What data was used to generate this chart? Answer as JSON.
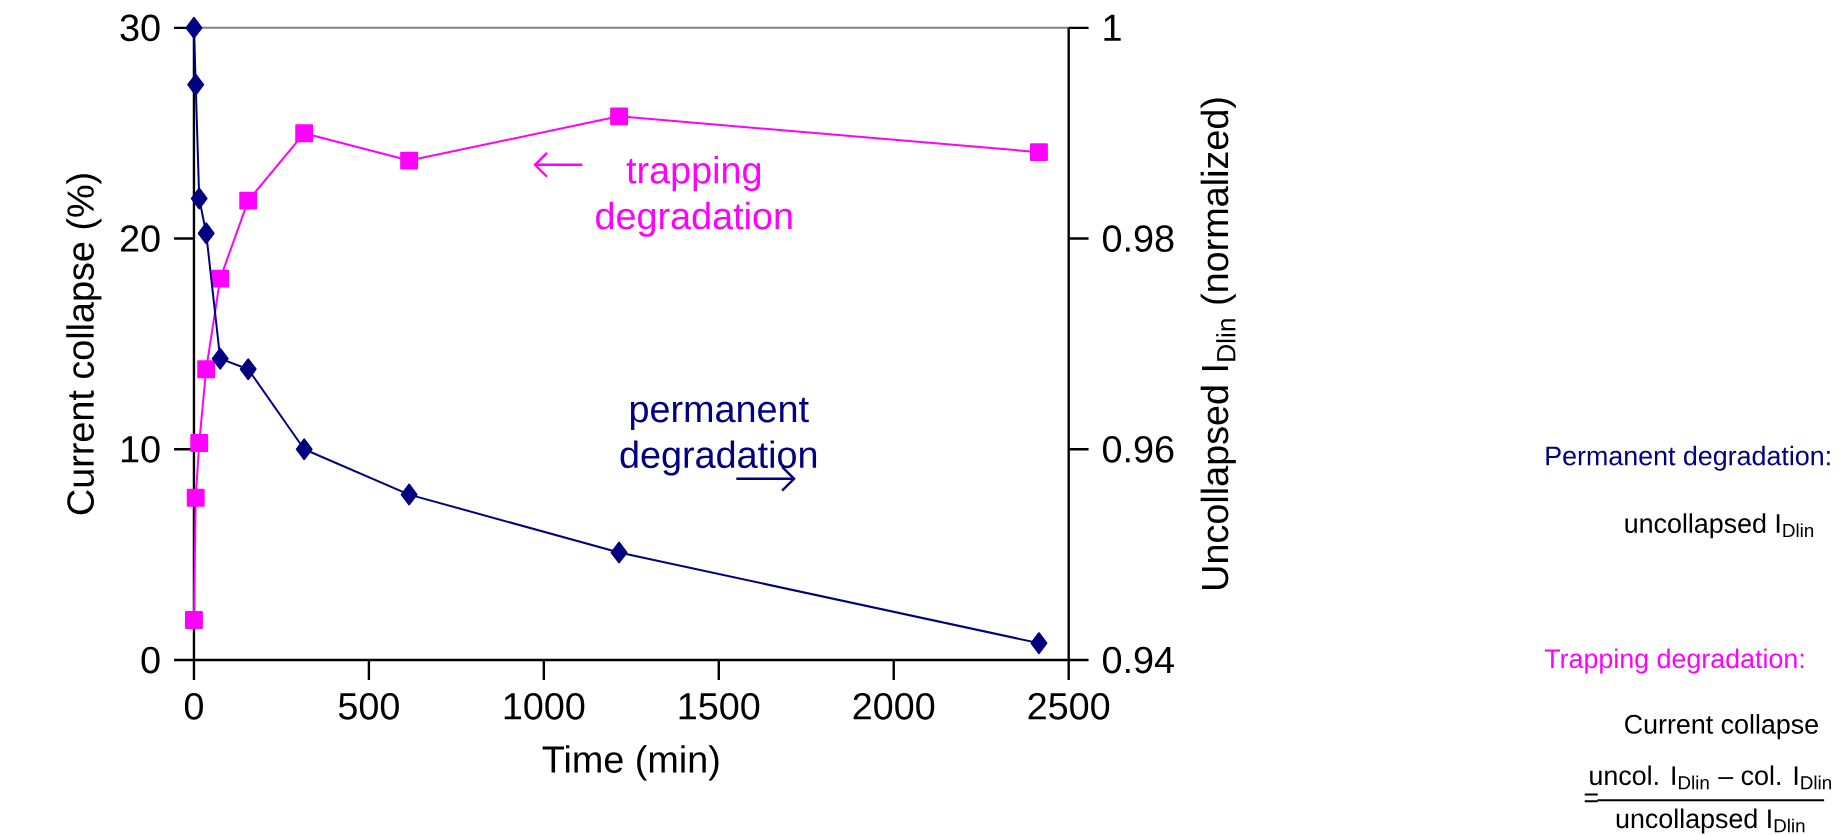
{
  "chart_data": {
    "type": "line",
    "xlabel": "Time (min)",
    "ylabel": "Current collapse (%)",
    "y2label": "Uncollapsed I$_{Dlin}$ (normalized)",
    "xlim": [
      0,
      2500
    ],
    "xticks": [
      0,
      500,
      1000,
      1500,
      2000,
      2500
    ],
    "ylim": [
      0,
      30
    ],
    "yticks": [
      0,
      10,
      20,
      30
    ],
    "y2lim": [
      0.94,
      1
    ],
    "y2ticks": [
      0.94,
      0.96,
      0.98,
      1
    ],
    "series": [
      {
        "name": "trapping degradation",
        "color": "#ff00ff",
        "marker": "square",
        "x": [
          0,
          5,
          15,
          35,
          75,
          155,
          315,
          615,
          1215,
          2415
        ],
        "values": [
          1.9,
          7.7,
          10.3,
          13.8,
          18.1,
          21.8,
          25.0,
          23.7,
          25.8,
          24.1
        ]
      },
      {
        "name": "permanent degradation",
        "color": "#000080",
        "marker": "diamond",
        "axis": "y2",
        "x": [
          0,
          5,
          15,
          35,
          75,
          155,
          315,
          615,
          1215,
          2415
        ],
        "values": [
          1.0,
          0.9946,
          0.9838,
          0.9805,
          0.9686,
          0.9676,
          0.96,
          0.9557,
          0.9502,
          0.9416
        ]
      }
    ],
    "annotations": [
      "Permanent degradation:",
      "uncollapsed I$_{Dlin}$",
      "Trapping degradation:",
      "Current collapse",
      "=",
      "uncol. I$_{Dlin}$ – col. I$_{Dlin}$",
      "uncollapsed I$_{Dlin}$"
    ]
  }
}
